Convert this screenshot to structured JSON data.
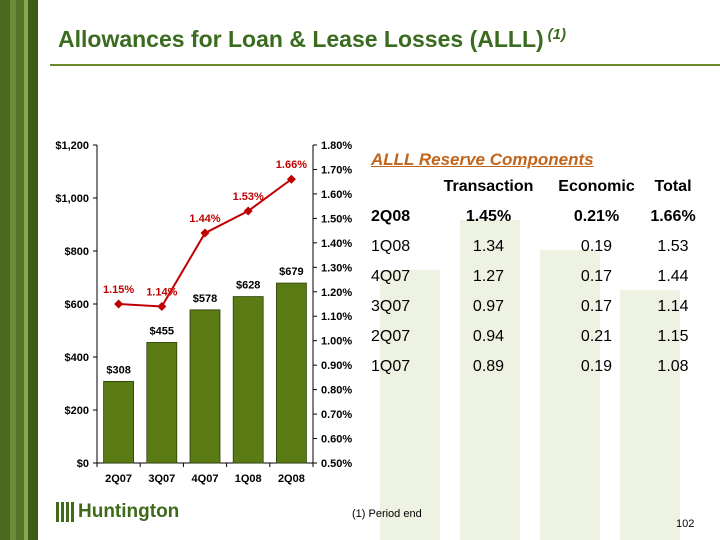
{
  "slide": {
    "title": "Allowances for Loan & Lease Losses (ALLL)",
    "title_superscript": "(1)",
    "footnote": "(1) Period end",
    "page_number": "102",
    "logo_text": "Huntington"
  },
  "colors": {
    "title": "#3a6b1f",
    "bar": "#5a7a14",
    "line": "#c00000",
    "accent_orange": "#c0651b"
  },
  "chart_data": {
    "type": "bar",
    "categories": [
      "2Q07",
      "3Q07",
      "4Q07",
      "1Q08",
      "2Q08"
    ],
    "series": [
      {
        "values": [
          308,
          455,
          578,
          628,
          679
        ],
        "labels": [
          "$308",
          "$455",
          "$578",
          "$628",
          "$679"
        ],
        "axis": "left",
        "render": "bar"
      },
      {
        "values": [
          1.15,
          1.14,
          1.44,
          1.53,
          1.66
        ],
        "labels": [
          "1.15%",
          "1.14%",
          "1.44%",
          "1.53%",
          "1.66%"
        ],
        "axis": "right",
        "render": "line"
      }
    ],
    "y_left": {
      "lim": [
        0,
        1200
      ],
      "ticks": [
        0,
        200,
        400,
        600,
        800,
        1000,
        1200
      ],
      "tick_labels": [
        "$0",
        "$200",
        "$400",
        "$600",
        "$800",
        "$1,000",
        "$1,200"
      ]
    },
    "y_right": {
      "lim": [
        0.5,
        1.8
      ],
      "ticks": [
        0.5,
        0.6,
        0.7,
        0.8,
        0.9,
        1.0,
        1.1,
        1.2,
        1.3,
        1.4,
        1.5,
        1.6,
        1.7,
        1.8
      ],
      "tick_labels": [
        "0.50%",
        "0.60%",
        "0.70%",
        "0.80%",
        "0.90%",
        "1.00%",
        "1.10%",
        "1.20%",
        "1.30%",
        "1.40%",
        "1.50%",
        "1.60%",
        "1.70%",
        "1.80%"
      ]
    },
    "grid": false
  },
  "components": {
    "title": "ALLL Reserve Components",
    "headers": [
      "",
      "Transaction",
      "Economic",
      "Total"
    ],
    "rows": [
      [
        "2Q08",
        "1.45%",
        "0.21%",
        "1.66%"
      ],
      [
        "1Q08",
        "1.34",
        "0.19",
        "1.53"
      ],
      [
        "4Q07",
        "1.27",
        "0.17",
        "1.44"
      ],
      [
        "3Q07",
        "0.97",
        "0.17",
        "1.14"
      ],
      [
        "2Q07",
        "0.94",
        "0.21",
        "1.15"
      ],
      [
        "1Q07",
        "0.89",
        "0.19",
        "1.08"
      ]
    ]
  }
}
